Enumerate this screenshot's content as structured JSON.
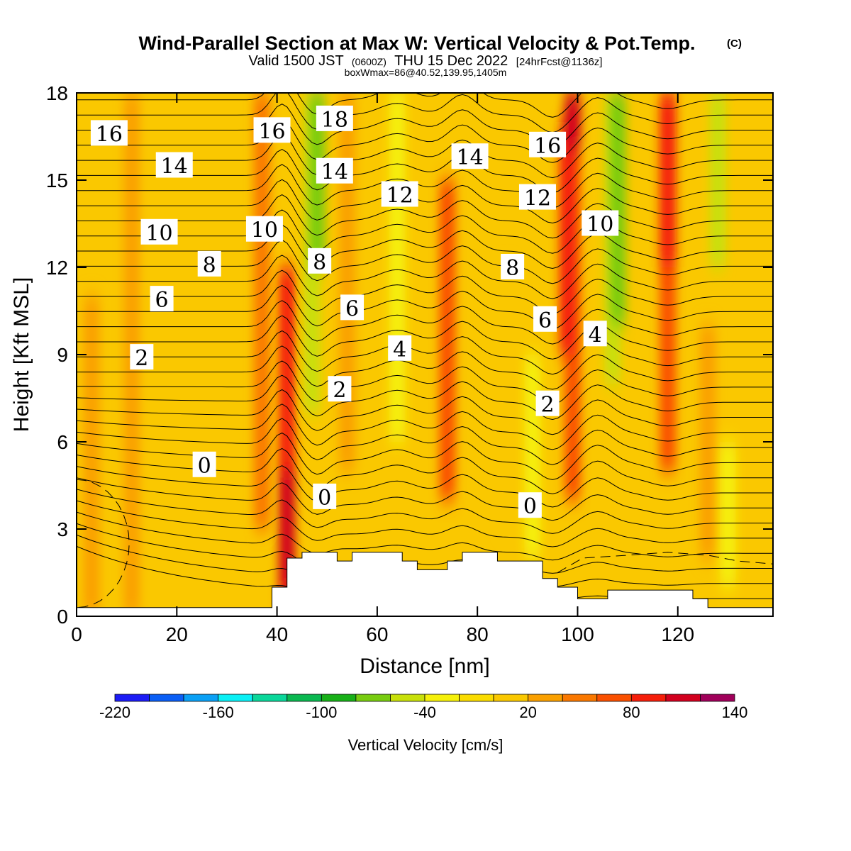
{
  "header": {
    "title": "Wind-Parallel Section at Max W: Vertical Velocity & Pot.Temp.",
    "copyright": "(C)",
    "valid_prefix": "Valid 1500 JST",
    "valid_utc": "(0600Z)",
    "valid_date": "THU 15 Dec 2022",
    "forecast": "[24hrFcst@1136z]",
    "box_info": "boxWmax=86@40.52,139.95,1405m"
  },
  "chart_data": {
    "type": "heatmap",
    "xlabel": "Distance [nm]",
    "ylabel": "Height [Kft MSL]",
    "xlim": [
      0,
      139
    ],
    "ylim": [
      0,
      18
    ],
    "x_ticks": [
      "0",
      "20",
      "40",
      "60",
      "80",
      "100",
      "120"
    ],
    "y_ticks": [
      "0",
      "3",
      "6",
      "9",
      "12",
      "15",
      "18"
    ],
    "colorbar": {
      "label": "Vertical Velocity [cm/s]",
      "levels": [
        -220,
        -200,
        -180,
        -160,
        -140,
        -120,
        -100,
        -80,
        -60,
        -40,
        -20,
        0,
        20,
        40,
        60,
        80,
        100,
        120,
        140
      ],
      "tick_labels": [
        "-220",
        "-160",
        "-100",
        "-40",
        "20",
        "80",
        "140"
      ],
      "colors": [
        "#1c1cf5",
        "#0a5ef5",
        "#0aa0f5",
        "#0af0f5",
        "#0ad79a",
        "#0ab850",
        "#18b018",
        "#78cc10",
        "#c8e00a",
        "#f5f00a",
        "#fadc00",
        "#fac800",
        "#faa000",
        "#fa7800",
        "#fa5000",
        "#f51e0a",
        "#d2001e",
        "#a0005a",
        "#5a0096"
      ]
    },
    "background_color": "#fac800",
    "bands": [
      {
        "x": 3,
        "y0": 0,
        "y1": 11,
        "color": "#faa000"
      },
      {
        "x": 11,
        "y0": 0,
        "y1": 18,
        "color": "#faa000"
      },
      {
        "x": 37,
        "y0": 3,
        "y1": 18,
        "color": "#fa7800"
      },
      {
        "x": 42,
        "y0": 0,
        "y1": 12,
        "color": "#f51e0a"
      },
      {
        "x": 42,
        "y0": 1,
        "y1": 5,
        "color": "#d2001e"
      },
      {
        "x": 47,
        "y0": 7,
        "y1": 18,
        "color": "#c8e00a"
      },
      {
        "x": 48,
        "y0": 12,
        "y1": 18,
        "color": "#78cc10"
      },
      {
        "x": 54,
        "y0": 5,
        "y1": 18,
        "color": "#faa000"
      },
      {
        "x": 64,
        "y0": 6,
        "y1": 18,
        "color": "#f5f00a"
      },
      {
        "x": 74,
        "y0": 4,
        "y1": 15,
        "color": "#fa5000"
      },
      {
        "x": 86,
        "y0": 3,
        "y1": 12,
        "color": "#fac800"
      },
      {
        "x": 91,
        "y0": 2,
        "y1": 9,
        "color": "#f5f00a"
      },
      {
        "x": 99,
        "y0": 4,
        "y1": 18,
        "color": "#fa5000"
      },
      {
        "x": 98,
        "y0": 9,
        "y1": 17,
        "color": "#f51e0a"
      },
      {
        "x": 99,
        "y0": 16,
        "y1": 18,
        "color": "#d2001e"
      },
      {
        "x": 107,
        "y0": 8,
        "y1": 18,
        "color": "#c8e00a"
      },
      {
        "x": 108,
        "y0": 10,
        "y1": 18,
        "color": "#78cc10"
      },
      {
        "x": 118,
        "y0": 5,
        "y1": 18,
        "color": "#fa5000"
      },
      {
        "x": 118,
        "y0": 12,
        "y1": 18,
        "color": "#f51e0a"
      },
      {
        "x": 126,
        "y0": 2,
        "y1": 10,
        "color": "#faa000"
      },
      {
        "x": 128,
        "y0": 12,
        "y1": 18,
        "color": "#c8e00a"
      },
      {
        "x": 130,
        "y0": 1,
        "y1": 6,
        "color": "#f5f00a"
      }
    ],
    "terrain": [
      [
        0,
        0.3
      ],
      [
        39,
        0.3
      ],
      [
        39,
        1
      ],
      [
        42,
        1
      ],
      [
        42,
        2
      ],
      [
        45,
        2
      ],
      [
        45,
        2.2
      ],
      [
        52,
        2.2
      ],
      [
        52,
        1.9
      ],
      [
        55,
        1.9
      ],
      [
        55,
        2.2
      ],
      [
        65,
        2.2
      ],
      [
        65,
        1.9
      ],
      [
        68,
        1.9
      ],
      [
        68,
        1.6
      ],
      [
        74,
        1.6
      ],
      [
        74,
        1.9
      ],
      [
        77,
        1.9
      ],
      [
        77,
        2.2
      ],
      [
        84,
        2.2
      ],
      [
        84,
        1.9
      ],
      [
        93,
        1.9
      ],
      [
        93,
        1.3
      ],
      [
        96,
        1.3
      ],
      [
        96,
        1
      ],
      [
        100,
        1
      ],
      [
        100,
        0.6
      ],
      [
        106,
        0.6
      ],
      [
        106,
        0.9
      ],
      [
        123,
        0.9
      ],
      [
        123,
        0.6
      ],
      [
        126,
        0.6
      ],
      [
        126,
        0.3
      ],
      [
        139,
        0.3
      ]
    ],
    "isotherm_spacing": 2,
    "contour_labels": [
      {
        "text": "16",
        "x": 6.5,
        "y": 16.6
      },
      {
        "text": "14",
        "x": 19.5,
        "y": 15.5
      },
      {
        "text": "10",
        "x": 16.5,
        "y": 13.2
      },
      {
        "text": "8",
        "x": 26.5,
        "y": 12.1
      },
      {
        "text": "6",
        "x": 17.0,
        "y": 10.9
      },
      {
        "text": "2",
        "x": 13.0,
        "y": 8.9
      },
      {
        "text": "0",
        "x": 25.5,
        "y": 5.2
      },
      {
        "text": "16",
        "x": 39.0,
        "y": 16.7
      },
      {
        "text": "10",
        "x": 37.5,
        "y": 13.3
      },
      {
        "text": "18",
        "x": 51.5,
        "y": 17.1
      },
      {
        "text": "14",
        "x": 51.5,
        "y": 15.3
      },
      {
        "text": "8",
        "x": 48.5,
        "y": 12.2
      },
      {
        "text": "6",
        "x": 55.0,
        "y": 10.6
      },
      {
        "text": "2",
        "x": 52.5,
        "y": 7.8
      },
      {
        "text": "0",
        "x": 49.5,
        "y": 4.1
      },
      {
        "text": "12",
        "x": 64.5,
        "y": 14.5
      },
      {
        "text": "4",
        "x": 64.5,
        "y": 9.2
      },
      {
        "text": "14",
        "x": 78.5,
        "y": 15.8
      },
      {
        "text": "16",
        "x": 94.0,
        "y": 16.2
      },
      {
        "text": "12",
        "x": 92.0,
        "y": 14.4
      },
      {
        "text": "8",
        "x": 87.0,
        "y": 12.0
      },
      {
        "text": "6",
        "x": 93.5,
        "y": 10.2
      },
      {
        "text": "2",
        "x": 94.0,
        "y": 7.3
      },
      {
        "text": "0",
        "x": 90.5,
        "y": 3.8
      },
      {
        "text": "10",
        "x": 104.5,
        "y": 13.5
      },
      {
        "text": "4",
        "x": 103.5,
        "y": 9.7
      }
    ]
  }
}
